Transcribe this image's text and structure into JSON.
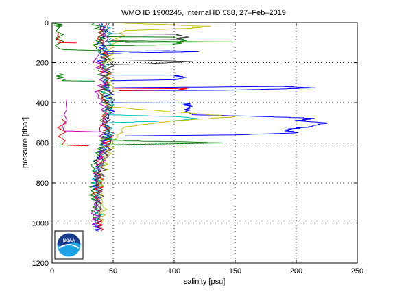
{
  "chart_data": {
    "type": "line",
    "title": "WMO ID 1900245, internal ID 588, 27–Feb–2019",
    "xlabel": "salinity [psu]",
    "ylabel": "pressure [dbar]",
    "xlim": [
      0,
      250
    ],
    "ylim": [
      0,
      1200
    ],
    "y_reversed": true,
    "grid": true,
    "grid_style": "dotted",
    "legend": "none",
    "x_ticks": [
      "0",
      "50",
      "100",
      "150",
      "200",
      "250"
    ],
    "y_ticks": [
      "0",
      "200",
      "400",
      "600",
      "800",
      "1000",
      "1200"
    ],
    "series_colors": [
      "#0000ff",
      "#008000",
      "#ff0000",
      "#00bfbf",
      "#bf00bf",
      "#bfbf00",
      "#404040"
    ],
    "logo": {
      "text": "NOAA",
      "colors": [
        "#1a3c8c",
        "#1ca3e6",
        "#ffffff"
      ]
    },
    "series": [
      {
        "color": "#0000ff",
        "points": [
          [
            40,
            0
          ],
          [
            44,
            50
          ],
          [
            38,
            100
          ],
          [
            45,
            150
          ],
          [
            40,
            200
          ],
          [
            46,
            250
          ],
          [
            42,
            300
          ],
          [
            47,
            350
          ],
          [
            44,
            400
          ],
          [
            48,
            450
          ],
          [
            43,
            500
          ],
          [
            47,
            550
          ],
          [
            44,
            600
          ],
          [
            40,
            650
          ],
          [
            36,
            700
          ],
          [
            39,
            750
          ],
          [
            34,
            800
          ],
          [
            38,
            850
          ],
          [
            35,
            900
          ],
          [
            37,
            950
          ],
          [
            36,
            1000
          ],
          [
            38,
            1040
          ]
        ]
      },
      {
        "color": "#0000ff",
        "points": [
          [
            40,
            400
          ],
          [
            110,
            402
          ],
          [
            112,
            420
          ],
          [
            110,
            440
          ],
          [
            115,
            460
          ],
          [
            180,
            470
          ],
          [
            215,
            478
          ],
          [
            200,
            490
          ],
          [
            225,
            500
          ],
          [
            210,
            520
          ],
          [
            190,
            535
          ],
          [
            200,
            550
          ],
          [
            150,
            560
          ],
          [
            60,
            565
          ]
        ]
      },
      {
        "color": "#0000ff",
        "points": [
          [
            50,
            325
          ],
          [
            120,
            322
          ],
          [
            190,
            318
          ],
          [
            200,
            322
          ],
          [
            215,
            326
          ],
          [
            185,
            332
          ],
          [
            140,
            338
          ],
          [
            55,
            340
          ]
        ]
      },
      {
        "color": "#008000",
        "points": [
          [
            35,
            0
          ],
          [
            42,
            60
          ],
          [
            36,
            120
          ],
          [
            44,
            180
          ],
          [
            38,
            240
          ],
          [
            45,
            300
          ],
          [
            40,
            360
          ],
          [
            46,
            420
          ],
          [
            41,
            480
          ],
          [
            47,
            540
          ],
          [
            42,
            600
          ],
          [
            38,
            660
          ],
          [
            33,
            720
          ],
          [
            37,
            780
          ],
          [
            32,
            840
          ],
          [
            36,
            900
          ],
          [
            34,
            960
          ],
          [
            37,
            1020
          ]
        ]
      },
      {
        "color": "#ff0000",
        "points": [
          [
            45,
            0
          ],
          [
            38,
            70
          ],
          [
            46,
            140
          ],
          [
            40,
            210
          ],
          [
            47,
            280
          ],
          [
            39,
            350
          ],
          [
            46,
            420
          ],
          [
            41,
            490
          ],
          [
            48,
            560
          ],
          [
            43,
            620
          ],
          [
            39,
            680
          ],
          [
            37,
            740
          ],
          [
            40,
            800
          ],
          [
            36,
            860
          ],
          [
            39,
            920
          ],
          [
            38,
            980
          ],
          [
            40,
            1040
          ]
        ]
      },
      {
        "color": "#ff0000",
        "points": [
          [
            8,
            480
          ],
          [
            8,
            610
          ],
          [
            30,
            615
          ]
        ]
      },
      {
        "color": "#ff0000",
        "points": [
          [
            50,
            328
          ],
          [
            100,
            330
          ],
          [
            110,
            325
          ],
          [
            105,
            336
          ],
          [
            55,
            340
          ]
        ]
      },
      {
        "color": "#00bfbf",
        "points": [
          [
            42,
            0
          ],
          [
            48,
            80
          ],
          [
            40,
            160
          ],
          [
            46,
            240
          ],
          [
            42,
            320
          ],
          [
            48,
            400
          ],
          [
            44,
            460
          ],
          [
            105,
            470
          ],
          [
            120,
            480
          ],
          [
            100,
            490
          ],
          [
            45,
            500
          ],
          [
            49,
            580
          ],
          [
            43,
            640
          ],
          [
            40,
            700
          ],
          [
            35,
            760
          ],
          [
            38,
            820
          ],
          [
            37,
            880
          ],
          [
            39,
            940
          ],
          [
            36,
            1000
          ]
        ]
      },
      {
        "color": "#bf00bf",
        "points": [
          [
            38,
            0
          ],
          [
            45,
            90
          ],
          [
            36,
            180
          ],
          [
            43,
            270
          ],
          [
            38,
            360
          ],
          [
            44,
            450
          ],
          [
            39,
            540
          ],
          [
            45,
            620
          ],
          [
            40,
            700
          ],
          [
            36,
            780
          ],
          [
            38,
            860
          ],
          [
            35,
            940
          ],
          [
            37,
            1020
          ]
        ]
      },
      {
        "color": "#bfbf00",
        "points": [
          [
            48,
            0
          ],
          [
            95,
            10
          ],
          [
            130,
            20
          ],
          [
            110,
            30
          ],
          [
            60,
            40
          ],
          [
            50,
            120
          ],
          [
            44,
            220
          ],
          [
            50,
            320
          ],
          [
            46,
            420
          ],
          [
            120,
            455
          ],
          [
            150,
            470
          ],
          [
            100,
            490
          ],
          [
            60,
            520
          ],
          [
            49,
            600
          ],
          [
            44,
            680
          ],
          [
            41,
            760
          ],
          [
            39,
            840
          ],
          [
            42,
            920
          ],
          [
            40,
            1000
          ]
        ]
      },
      {
        "color": "#404040",
        "points": [
          [
            47,
            0
          ],
          [
            40,
            100
          ],
          [
            48,
            200
          ],
          [
            43,
            300
          ],
          [
            49,
            400
          ],
          [
            44,
            500
          ],
          [
            48,
            600
          ],
          [
            42,
            700
          ],
          [
            38,
            800
          ],
          [
            40,
            900
          ],
          [
            38,
            1000
          ]
        ]
      },
      {
        "color": "#008000",
        "points": [
          [
            4,
            0
          ],
          [
            6,
            25
          ],
          [
            6,
            130
          ],
          [
            12,
            135
          ],
          [
            40,
            140
          ]
        ]
      },
      {
        "color": "#008000",
        "points": [
          [
            45,
            70
          ],
          [
            100,
            72
          ],
          [
            110,
            90
          ],
          [
            100,
            110
          ],
          [
            45,
            115
          ]
        ]
      },
      {
        "color": "#008000",
        "points": [
          [
            40,
            580
          ],
          [
            60,
            590
          ],
          [
            110,
            595
          ],
          [
            140,
            600
          ],
          [
            90,
            605
          ],
          [
            40,
            610
          ]
        ]
      },
      {
        "color": "#404040",
        "points": [
          [
            45,
            55
          ],
          [
            100,
            58
          ],
          [
            110,
            70
          ],
          [
            102,
            85
          ],
          [
            48,
            90
          ]
        ]
      },
      {
        "color": "#404040",
        "points": [
          [
            45,
            185
          ],
          [
            90,
            190
          ],
          [
            115,
            195
          ],
          [
            80,
            205
          ],
          [
            45,
            210
          ]
        ]
      },
      {
        "color": "#0000ff",
        "points": [
          [
            45,
            145
          ],
          [
            95,
            140
          ],
          [
            120,
            145
          ],
          [
            70,
            150
          ],
          [
            45,
            155
          ]
        ]
      },
      {
        "color": "#008000",
        "points": [
          [
            6,
            255
          ],
          [
            8,
            290
          ],
          [
            35,
            292
          ]
        ]
      },
      {
        "color": "#bf00bf",
        "points": [
          [
            12,
            380
          ],
          [
            10,
            540
          ],
          [
            40,
            545
          ]
        ]
      },
      {
        "color": "#008000",
        "points": [
          [
            45,
            95
          ],
          [
            75,
            92
          ],
          [
            98,
            95
          ],
          [
            148,
            97
          ],
          [
            60,
            99
          ]
        ]
      },
      {
        "color": "#ff0000",
        "points": [
          [
            5,
            50
          ],
          [
            5,
            100
          ],
          [
            20,
            102
          ]
        ]
      },
      {
        "color": "#0000ff",
        "points": [
          [
            45,
            262
          ],
          [
            100,
            262
          ],
          [
            108,
            275
          ],
          [
            100,
            285
          ],
          [
            48,
            290
          ]
        ]
      }
    ]
  }
}
